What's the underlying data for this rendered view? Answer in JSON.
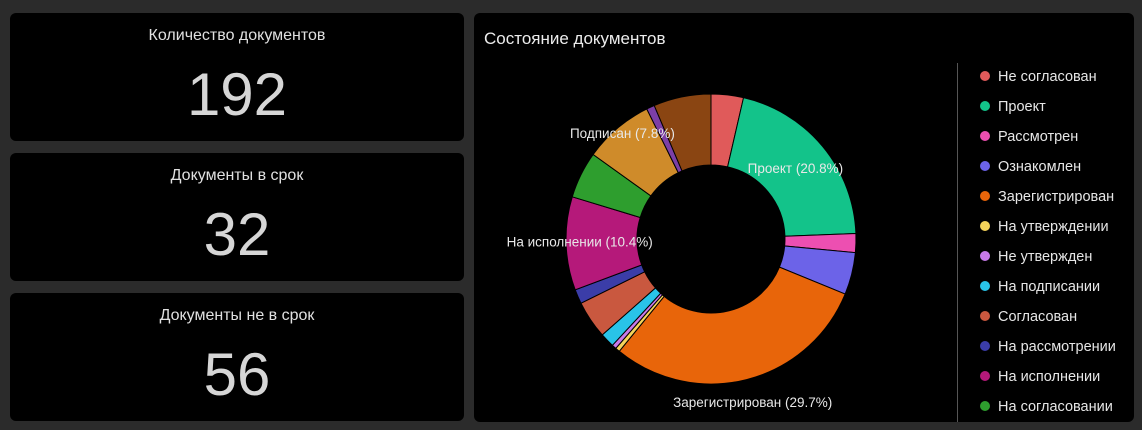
{
  "cards": [
    {
      "title": "Количество документов",
      "value": "192"
    },
    {
      "title": "Документы в срок",
      "value": "32"
    },
    {
      "title": "Документы не в срок",
      "value": "56"
    }
  ],
  "chart_data": {
    "type": "pie",
    "title": "Состояние документов",
    "donut": true,
    "legend_position": "right",
    "categories": [
      "Не согласован",
      "Проект",
      "Рассмотрен",
      "Ознакомлен",
      "Зарегистрирован",
      "На утверждении",
      "Не утвержден",
      "На подписании",
      "Согласован",
      "На рассмотрении",
      "На исполнении",
      "На согласовании",
      "Подписан",
      "",
      ""
    ],
    "legend": [
      "Не согласован",
      "Проект",
      "Рассмотрен",
      "Ознакомлен",
      "Зарегистрирован",
      "На утверждении",
      "Не утвержден",
      "На подписании",
      "Согласован",
      "На рассмотрении",
      "На исполнении",
      "На согласовании"
    ],
    "values": [
      3.6,
      20.8,
      2.1,
      4.7,
      29.7,
      0.5,
      0.5,
      1.6,
      4.2,
      1.6,
      10.4,
      5.2,
      7.8,
      0.9,
      6.4
    ],
    "colors": [
      "#e05a5a",
      "#13c38a",
      "#ed4fb1",
      "#6c63e8",
      "#e8650a",
      "#f5d35a",
      "#c77ae8",
      "#29c3e8",
      "#c9583f",
      "#3b3da8",
      "#b5197a",
      "#2e9e2e",
      "#cf8b2a",
      "#7c3fa6",
      "#8a4512"
    ],
    "labels": [
      {
        "index": 1,
        "text": "Проект (20.8%)"
      },
      {
        "index": 4,
        "text": "Зарегистрирован (29.7%)"
      },
      {
        "index": 10,
        "text": "На исполнении (10.4%)"
      },
      {
        "index": 12,
        "text": "Подписан (7.8%)"
      }
    ]
  }
}
